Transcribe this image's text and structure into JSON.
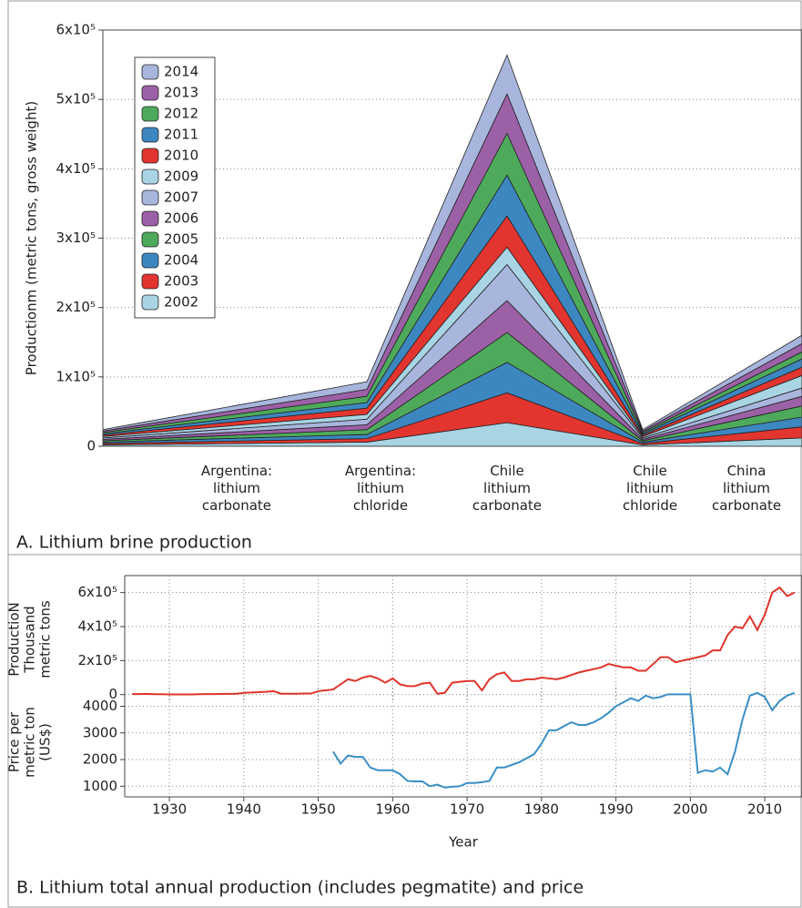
{
  "chart_data": [
    {
      "type": "area",
      "ylabel": "Productionm (metric tons, gross weight)",
      "caption": "A. Lithium brine production",
      "categories": [
        "Argentina: lithium carbonate",
        "Argentina: lithium chloride",
        "Chile lithium carbonate",
        "Chile lithium chloride",
        "China lithium carbonate"
      ],
      "series": [
        {
          "name": "2002",
          "color": "#a9d4e4",
          "values": [
            2000,
            6000,
            34000,
            2000,
            12000
          ]
        },
        {
          "name": "2003",
          "color": "#e2352f",
          "values": [
            2000,
            5000,
            43000,
            2000,
            16000
          ]
        },
        {
          "name": "2004",
          "color": "#3d87c1",
          "values": [
            2000,
            6000,
            44000,
            2000,
            14000
          ]
        },
        {
          "name": "2005",
          "color": "#4eaa5b",
          "values": [
            2000,
            7000,
            43000,
            2000,
            16000
          ]
        },
        {
          "name": "2006",
          "color": "#9c60a6",
          "values": [
            2000,
            7000,
            46000,
            2000,
            14000
          ]
        },
        {
          "name": "2007",
          "color": "#a8b6dd",
          "values": [
            2000,
            8000,
            52000,
            2000,
            12000
          ]
        },
        {
          "name": "2009",
          "color": "#a9d4e4",
          "values": [
            2000,
            7000,
            25000,
            2000,
            18000
          ]
        },
        {
          "name": "2010",
          "color": "#e2352f",
          "values": [
            2000,
            9000,
            45000,
            2000,
            12000
          ]
        },
        {
          "name": "2011",
          "color": "#3d87c1",
          "values": [
            2000,
            8000,
            59000,
            2000,
            12000
          ]
        },
        {
          "name": "2012",
          "color": "#4eaa5b",
          "values": [
            2000,
            9000,
            60000,
            2000,
            10000
          ]
        },
        {
          "name": "2013",
          "color": "#9c60a6",
          "values": [
            2000,
            10000,
            57000,
            2000,
            12000
          ]
        },
        {
          "name": "2014",
          "color": "#a8b6dd",
          "values": [
            2000,
            11000,
            56000,
            2000,
            12000
          ]
        }
      ],
      "ylim": [
        0,
        600000
      ],
      "yticks": [
        0,
        {
          "value": 100000,
          "label": "1x10⁵"
        },
        {
          "value": 200000,
          "label": "2x10⁵"
        },
        {
          "value": 300000,
          "label": "3x10⁵"
        },
        {
          "value": 400000,
          "label": "4x10⁵"
        },
        {
          "value": 500000,
          "label": "5x10⁵"
        },
        {
          "value": 600000,
          "label": "6x10⁵"
        }
      ],
      "grid": true
    },
    {
      "type": "line",
      "ylabel": [
        "ProductioN",
        "Thousand",
        "metric tons"
      ],
      "color": "#e0342c",
      "x": [
        1925,
        1926,
        1927,
        1928,
        1929,
        1930,
        1931,
        1932,
        1933,
        1934,
        1935,
        1936,
        1937,
        1938,
        1939,
        1940,
        1941,
        1942,
        1943,
        1944,
        1945,
        1946,
        1947,
        1948,
        1949,
        1950,
        1951,
        1952,
        1953,
        1954,
        1955,
        1956,
        1957,
        1958,
        1959,
        1960,
        1961,
        1962,
        1963,
        1964,
        1965,
        1966,
        1967,
        1968,
        1969,
        1970,
        1971,
        1972,
        1973,
        1974,
        1975,
        1976,
        1977,
        1978,
        1979,
        1980,
        1981,
        1982,
        1983,
        1984,
        1985,
        1986,
        1987,
        1988,
        1989,
        1990,
        1991,
        1992,
        1993,
        1994,
        1995,
        1996,
        1997,
        1998,
        1999,
        2000,
        2001,
        2002,
        2003,
        2004,
        2005,
        2006,
        2007,
        2008,
        2009,
        2010,
        2011,
        2012,
        2013,
        2014
      ],
      "values": [
        3000,
        3000,
        4000,
        2000,
        2000,
        1000,
        1000,
        1000,
        1000,
        2000,
        3000,
        3000,
        4000,
        4000,
        5000,
        10000,
        12000,
        14000,
        16000,
        20000,
        5000,
        5000,
        5000,
        6000,
        6000,
        20000,
        25000,
        30000,
        60000,
        90000,
        80000,
        100000,
        110000,
        95000,
        70000,
        95000,
        60000,
        50000,
        50000,
        65000,
        70000,
        5000,
        10000,
        70000,
        75000,
        80000,
        80000,
        25000,
        90000,
        120000,
        130000,
        80000,
        80000,
        90000,
        90000,
        100000,
        95000,
        90000,
        100000,
        115000,
        130000,
        140000,
        150000,
        160000,
        180000,
        170000,
        160000,
        160000,
        140000,
        140000,
        180000,
        220000,
        220000,
        190000,
        200000,
        210000,
        220000,
        230000,
        260000,
        260000,
        350000,
        400000,
        390000,
        460000,
        380000,
        470000,
        600000,
        630000,
        580000,
        600000
      ],
      "xlim": [
        1924,
        2015
      ],
      "xticks": [
        1930,
        1940,
        1950,
        1960,
        1970,
        1980,
        1990,
        2000,
        2010
      ],
      "ylim": [
        -50000,
        700000
      ],
      "yticks": [
        0,
        {
          "value": 200000,
          "label": "2x10⁵"
        },
        {
          "value": 400000,
          "label": "4x10⁵"
        },
        {
          "value": 600000,
          "label": "6x10⁵"
        }
      ],
      "grid": true
    },
    {
      "type": "line",
      "ylabel": [
        "Price per",
        "metric ton",
        "(US$)"
      ],
      "xlabel": "Year",
      "caption": "B. Lithium total annual production (includes pegmatite) and price",
      "color": "#3a8fc4",
      "x": [
        1952,
        1953,
        1954,
        1955,
        1956,
        1957,
        1958,
        1959,
        1960,
        1961,
        1962,
        1963,
        1964,
        1965,
        1966,
        1967,
        1968,
        1969,
        1970,
        1971,
        1972,
        1973,
        1974,
        1975,
        1976,
        1977,
        1978,
        1979,
        1980,
        1981,
        1982,
        1983,
        1984,
        1985,
        1986,
        1987,
        1988,
        1989,
        1990,
        1991,
        1992,
        1993,
        1994,
        1995,
        1996,
        1997,
        1998,
        1999,
        2000,
        2001,
        2002,
        2003,
        2004,
        2005,
        2006,
        2007,
        2008,
        2009,
        2010,
        2011,
        2012,
        2013,
        2014
      ],
      "values": [
        2300,
        1850,
        2150,
        2100,
        2100,
        1700,
        1600,
        1600,
        1600,
        1450,
        1200,
        1180,
        1180,
        1000,
        1060,
        950,
        980,
        1000,
        1120,
        1120,
        1150,
        1200,
        1700,
        1700,
        1800,
        1900,
        2050,
        2200,
        2600,
        3100,
        3100,
        3250,
        3400,
        3300,
        3300,
        3400,
        3550,
        3750,
        4000,
        4150,
        4300,
        4200,
        4400,
        4300,
        4350,
        4450,
        4450,
        4450,
        4450,
        1500,
        1600,
        1550,
        1700,
        1450,
        2300,
        3500,
        4400,
        4500,
        4350,
        3850,
        4200,
        4400,
        4500
      ],
      "xlim": [
        1924,
        2015
      ],
      "xticks": [
        1930,
        1940,
        1950,
        1960,
        1970,
        1980,
        1990,
        2000,
        2010
      ],
      "ylim": [
        600,
        4700
      ],
      "yticks": [
        1000,
        2000,
        3000,
        4000
      ],
      "grid": true
    }
  ]
}
